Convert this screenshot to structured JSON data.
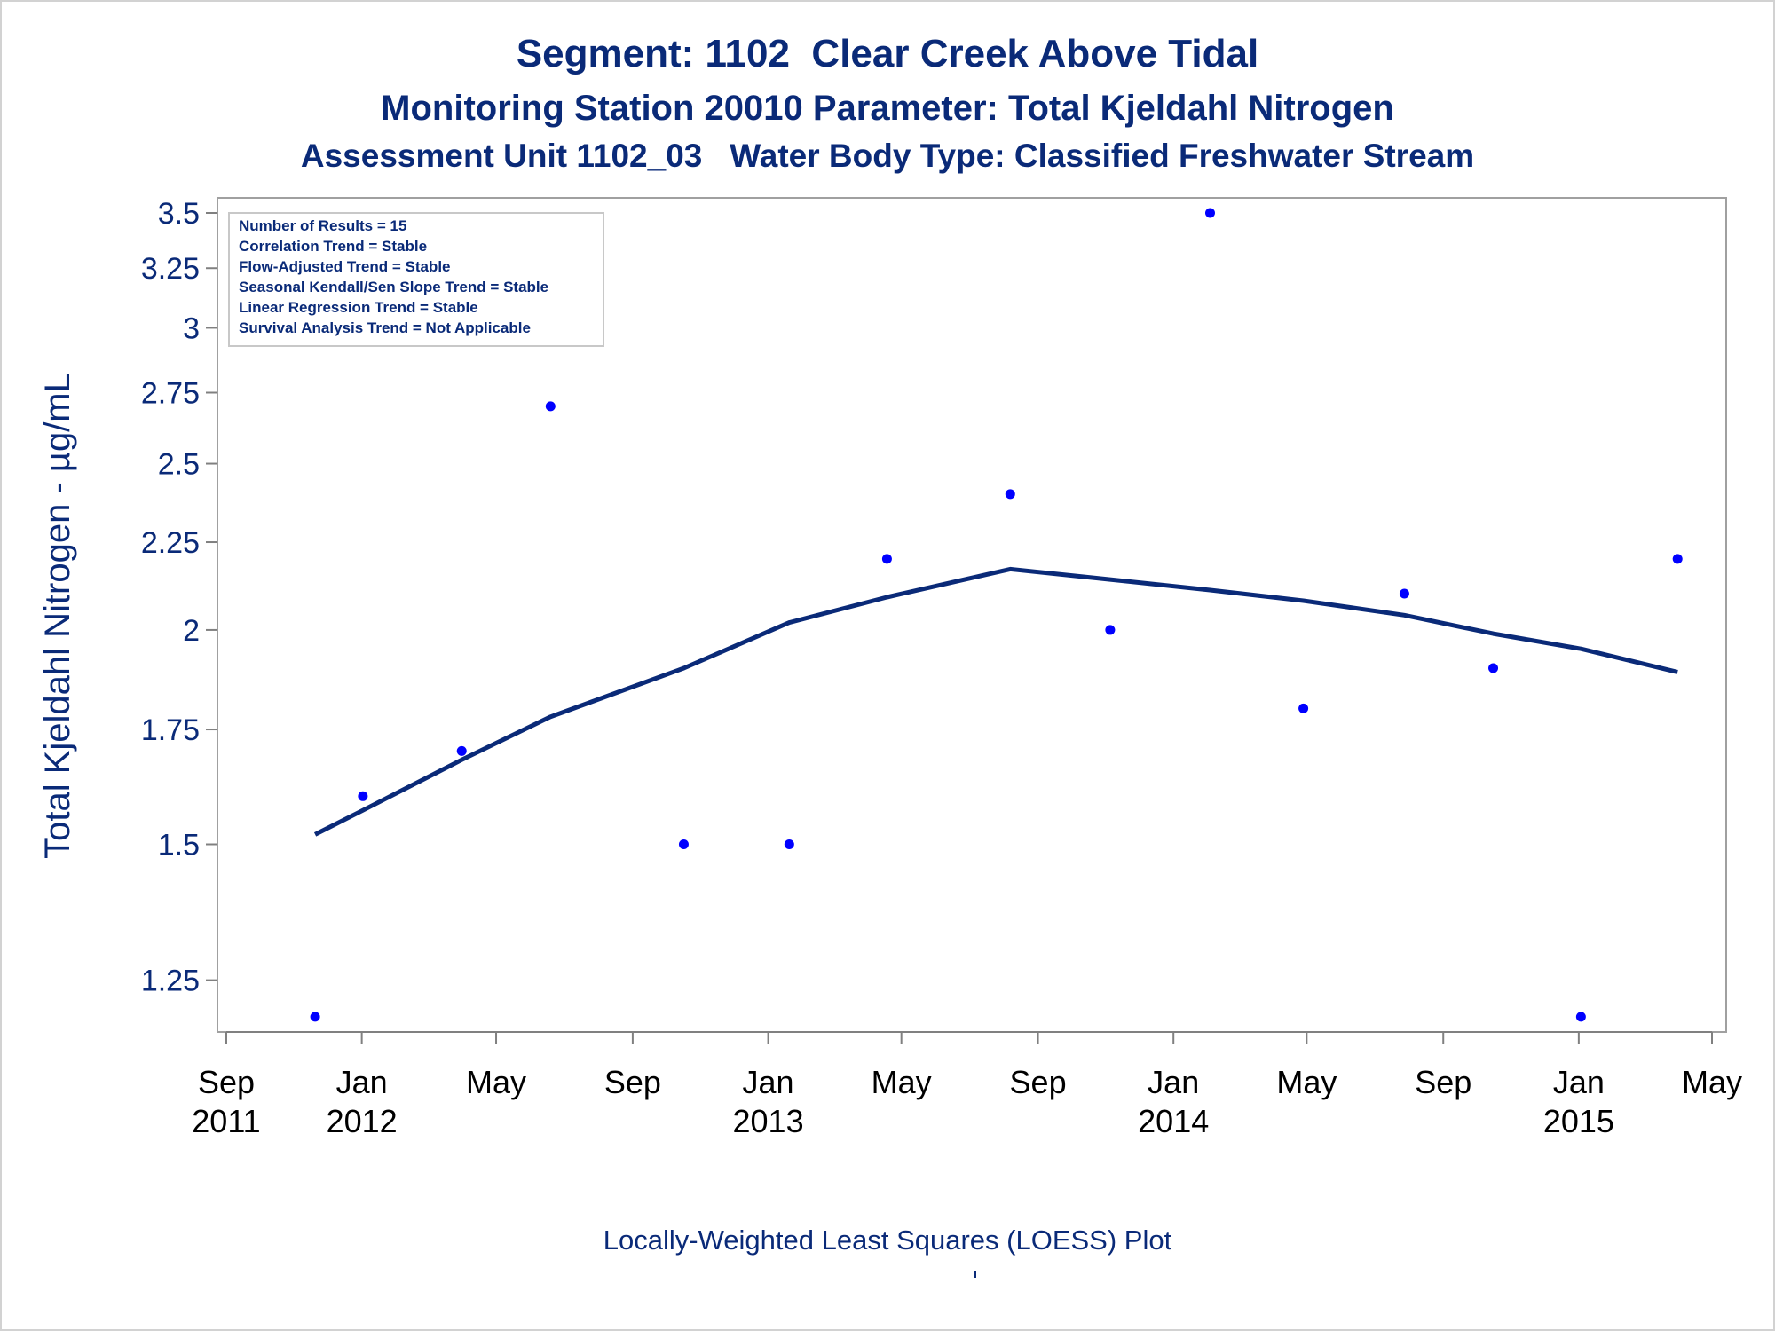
{
  "chart_data": {
    "type": "scatter",
    "title": "Segment: 1102  Clear Creek Above Tidal",
    "subtitle_lines": [
      "Monitoring Station 20010 Parameter: Total Kjeldahl Nitrogen",
      "Assessment Unit 1102_03   Water Body Type: Classified Freshwater Stream"
    ],
    "ylabel": "Total Kjeldahl Nitrogen -  µg/mL",
    "xlabel": "",
    "footnote": "Locally-Weighted Least Squares (LOESS) Plot",
    "y_scale": "log",
    "ylim": [
      1.18,
      3.5
    ],
    "xlim": [
      "2011-09-01",
      "2015-05-01"
    ],
    "y_ticks": [
      1.25,
      1.5,
      1.75,
      2,
      2.25,
      2.5,
      2.75,
      3,
      3.25,
      3.5
    ],
    "y_tick_labels": [
      "1.25",
      "1.5",
      "1.75",
      "2",
      "2.25",
      "2.5",
      "2.75",
      "3",
      "3.25",
      "3.5"
    ],
    "x_ticks": [
      {
        "date": "2011-09-01",
        "line1": "Sep",
        "line2": "2011"
      },
      {
        "date": "2012-01-01",
        "line1": "Jan",
        "line2": "2012"
      },
      {
        "date": "2012-05-01",
        "line1": "May",
        "line2": ""
      },
      {
        "date": "2012-09-01",
        "line1": "Sep",
        "line2": ""
      },
      {
        "date": "2013-01-01",
        "line1": "Jan",
        "line2": "2013"
      },
      {
        "date": "2013-05-01",
        "line1": "May",
        "line2": ""
      },
      {
        "date": "2013-09-01",
        "line1": "Sep",
        "line2": ""
      },
      {
        "date": "2014-01-01",
        "line1": "Jan",
        "line2": "2014"
      },
      {
        "date": "2014-05-01",
        "line1": "May",
        "line2": ""
      },
      {
        "date": "2014-09-01",
        "line1": "Sep",
        "line2": ""
      },
      {
        "date": "2015-01-01",
        "line1": "Jan",
        "line2": "2015"
      },
      {
        "date": "2015-05-01",
        "line1": "May",
        "line2": ""
      }
    ],
    "series": [
      {
        "type": "scatter",
        "color": "#0000ff",
        "points": [
          {
            "x": "2011-11-20",
            "y": 1.19
          },
          {
            "x": "2012-01-02",
            "y": 1.6
          },
          {
            "x": "2012-03-31",
            "y": 1.7
          },
          {
            "x": "2012-06-19",
            "y": 2.7
          },
          {
            "x": "2012-10-17",
            "y": 1.5
          },
          {
            "x": "2013-01-20",
            "y": 1.5
          },
          {
            "x": "2013-04-18",
            "y": 2.2
          },
          {
            "x": "2013-08-07",
            "y": 2.4
          },
          {
            "x": "2013-11-05",
            "y": 2.0
          },
          {
            "x": "2014-02-03",
            "y": 3.5
          },
          {
            "x": "2014-04-28",
            "y": 1.8
          },
          {
            "x": "2014-07-28",
            "y": 2.1
          },
          {
            "x": "2014-10-16",
            "y": 1.9
          },
          {
            "x": "2015-01-03",
            "y": 1.19
          },
          {
            "x": "2015-03-31",
            "y": 2.2
          }
        ]
      },
      {
        "type": "line",
        "color": "#0a2a78",
        "points": [
          {
            "x": "2011-11-20",
            "y": 1.52
          },
          {
            "x": "2012-01-02",
            "y": 1.57
          },
          {
            "x": "2012-03-31",
            "y": 1.68
          },
          {
            "x": "2012-06-19",
            "y": 1.78
          },
          {
            "x": "2012-10-17",
            "y": 1.9
          },
          {
            "x": "2013-01-20",
            "y": 2.02
          },
          {
            "x": "2013-04-18",
            "y": 2.09
          },
          {
            "x": "2013-08-07",
            "y": 2.17
          },
          {
            "x": "2013-11-05",
            "y": 2.14
          },
          {
            "x": "2014-02-03",
            "y": 2.11
          },
          {
            "x": "2014-04-28",
            "y": 2.08
          },
          {
            "x": "2014-07-28",
            "y": 2.04
          },
          {
            "x": "2014-10-16",
            "y": 1.99
          },
          {
            "x": "2015-01-03",
            "y": 1.95
          },
          {
            "x": "2015-03-31",
            "y": 1.89
          }
        ]
      }
    ],
    "legend_box": {
      "placement": "top-left",
      "lines": [
        "Number of Results = 15",
        "Correlation Trend = Stable",
        "Flow-Adjusted Trend = Stable",
        "Seasonal Kendall/Sen Slope Trend = Stable",
        "Linear Regression Trend = Stable",
        "Survival Analysis Trend = Not Applicable"
      ]
    },
    "grid": false
  }
}
